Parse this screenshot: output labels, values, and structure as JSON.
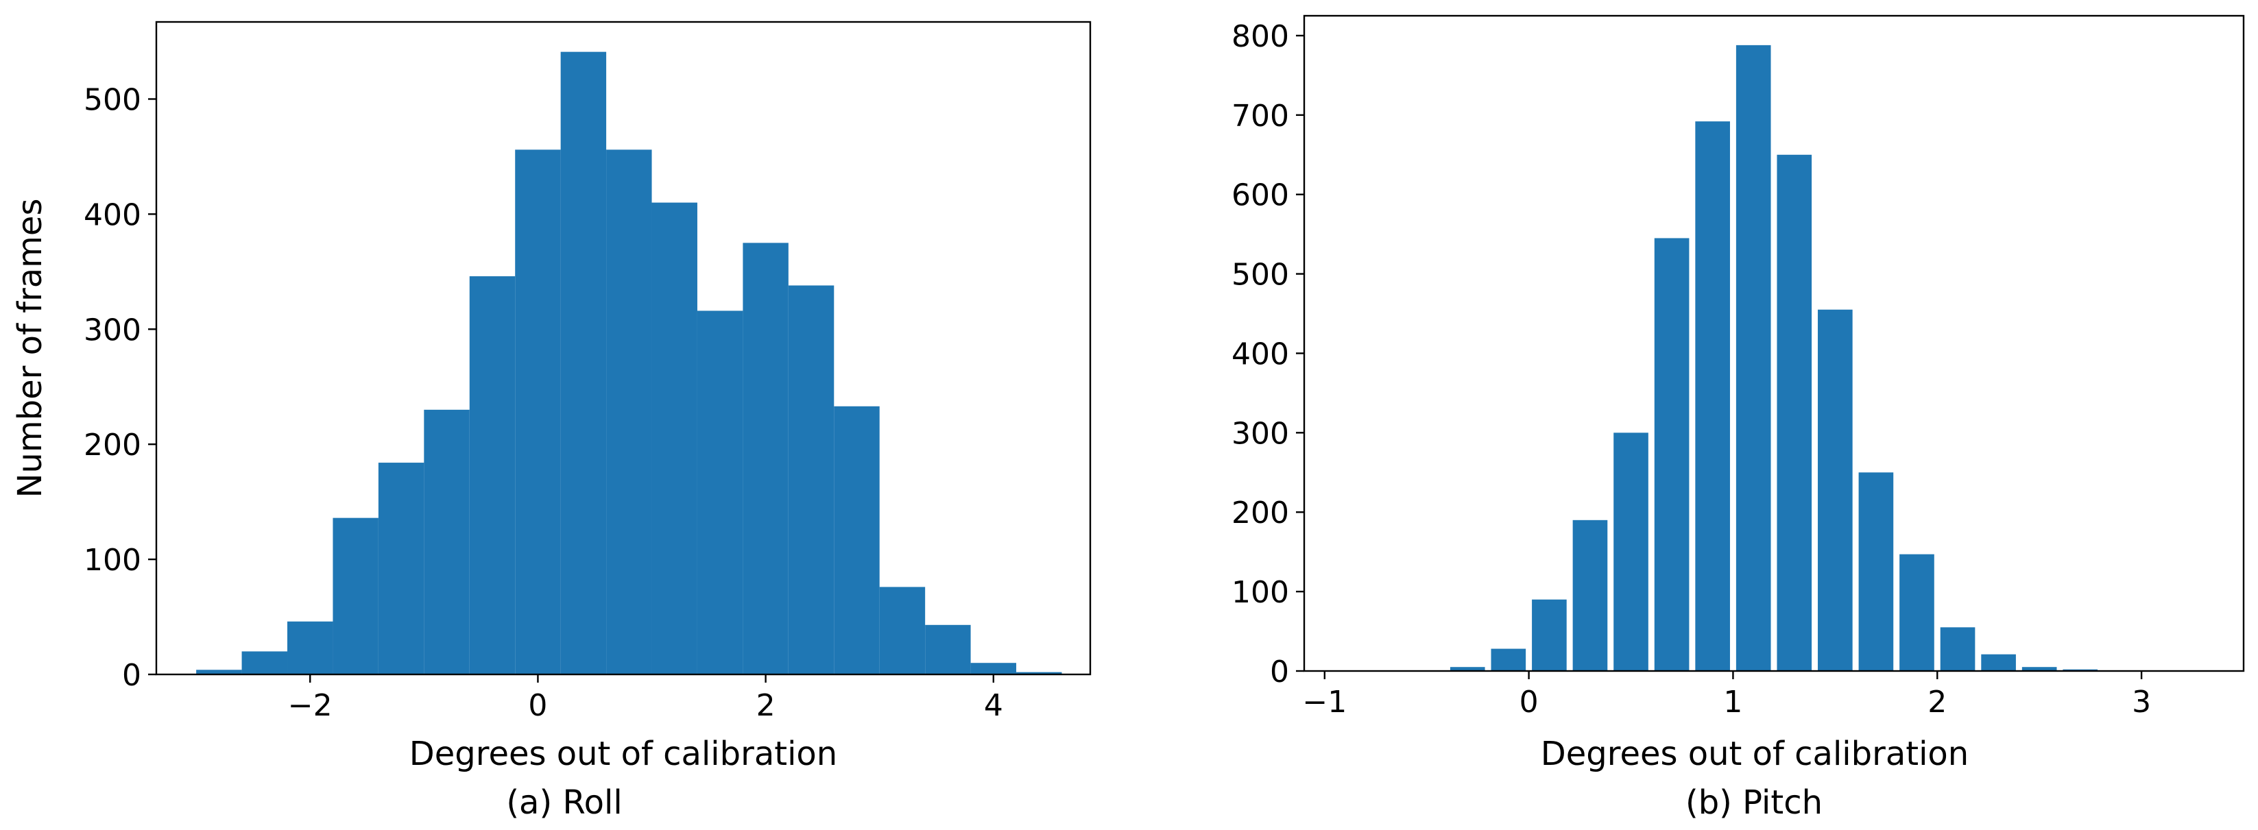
{
  "chart_data": [
    {
      "type": "bar",
      "caption": "(a) Roll",
      "xlabel": "Degrees out of calibration",
      "ylabel": "Number of frames",
      "bar_color": "#1f77b4",
      "bar_width": 0.4,
      "xlim": [
        -3.35,
        4.85
      ],
      "ylim": [
        0,
        567
      ],
      "xticks": [
        -2,
        0,
        2,
        4
      ],
      "yticks": [
        0,
        100,
        200,
        300,
        400,
        500
      ],
      "x": [
        -2.8,
        -2.4,
        -2.0,
        -1.6,
        -1.2,
        -0.8,
        -0.4,
        0.0,
        0.4,
        0.8,
        1.2,
        1.6,
        2.0,
        2.4,
        2.8,
        3.2,
        3.6,
        4.0,
        4.4
      ],
      "values": [
        4,
        20,
        46,
        136,
        184,
        230,
        346,
        456,
        541,
        456,
        410,
        316,
        375,
        338,
        233,
        76,
        43,
        10,
        2
      ]
    },
    {
      "type": "bar",
      "caption": "(b) Pitch",
      "xlabel": "Degrees out of calibration",
      "ylabel": "",
      "bar_color": "#1f77b4",
      "bar_width": 0.17,
      "xlim": [
        -1.1,
        3.5
      ],
      "ylim": [
        0,
        825
      ],
      "xticks": [
        -1,
        0,
        1,
        2,
        3
      ],
      "yticks": [
        0,
        100,
        200,
        300,
        400,
        500,
        600,
        700,
        800
      ],
      "x": [
        -0.3,
        -0.1,
        0.1,
        0.3,
        0.5,
        0.7,
        0.9,
        1.1,
        1.3,
        1.5,
        1.7,
        1.9,
        2.1,
        2.3,
        2.5,
        2.7
      ],
      "values": [
        5,
        28,
        90,
        190,
        300,
        545,
        692,
        788,
        650,
        455,
        250,
        147,
        55,
        21,
        5,
        2
      ]
    }
  ]
}
